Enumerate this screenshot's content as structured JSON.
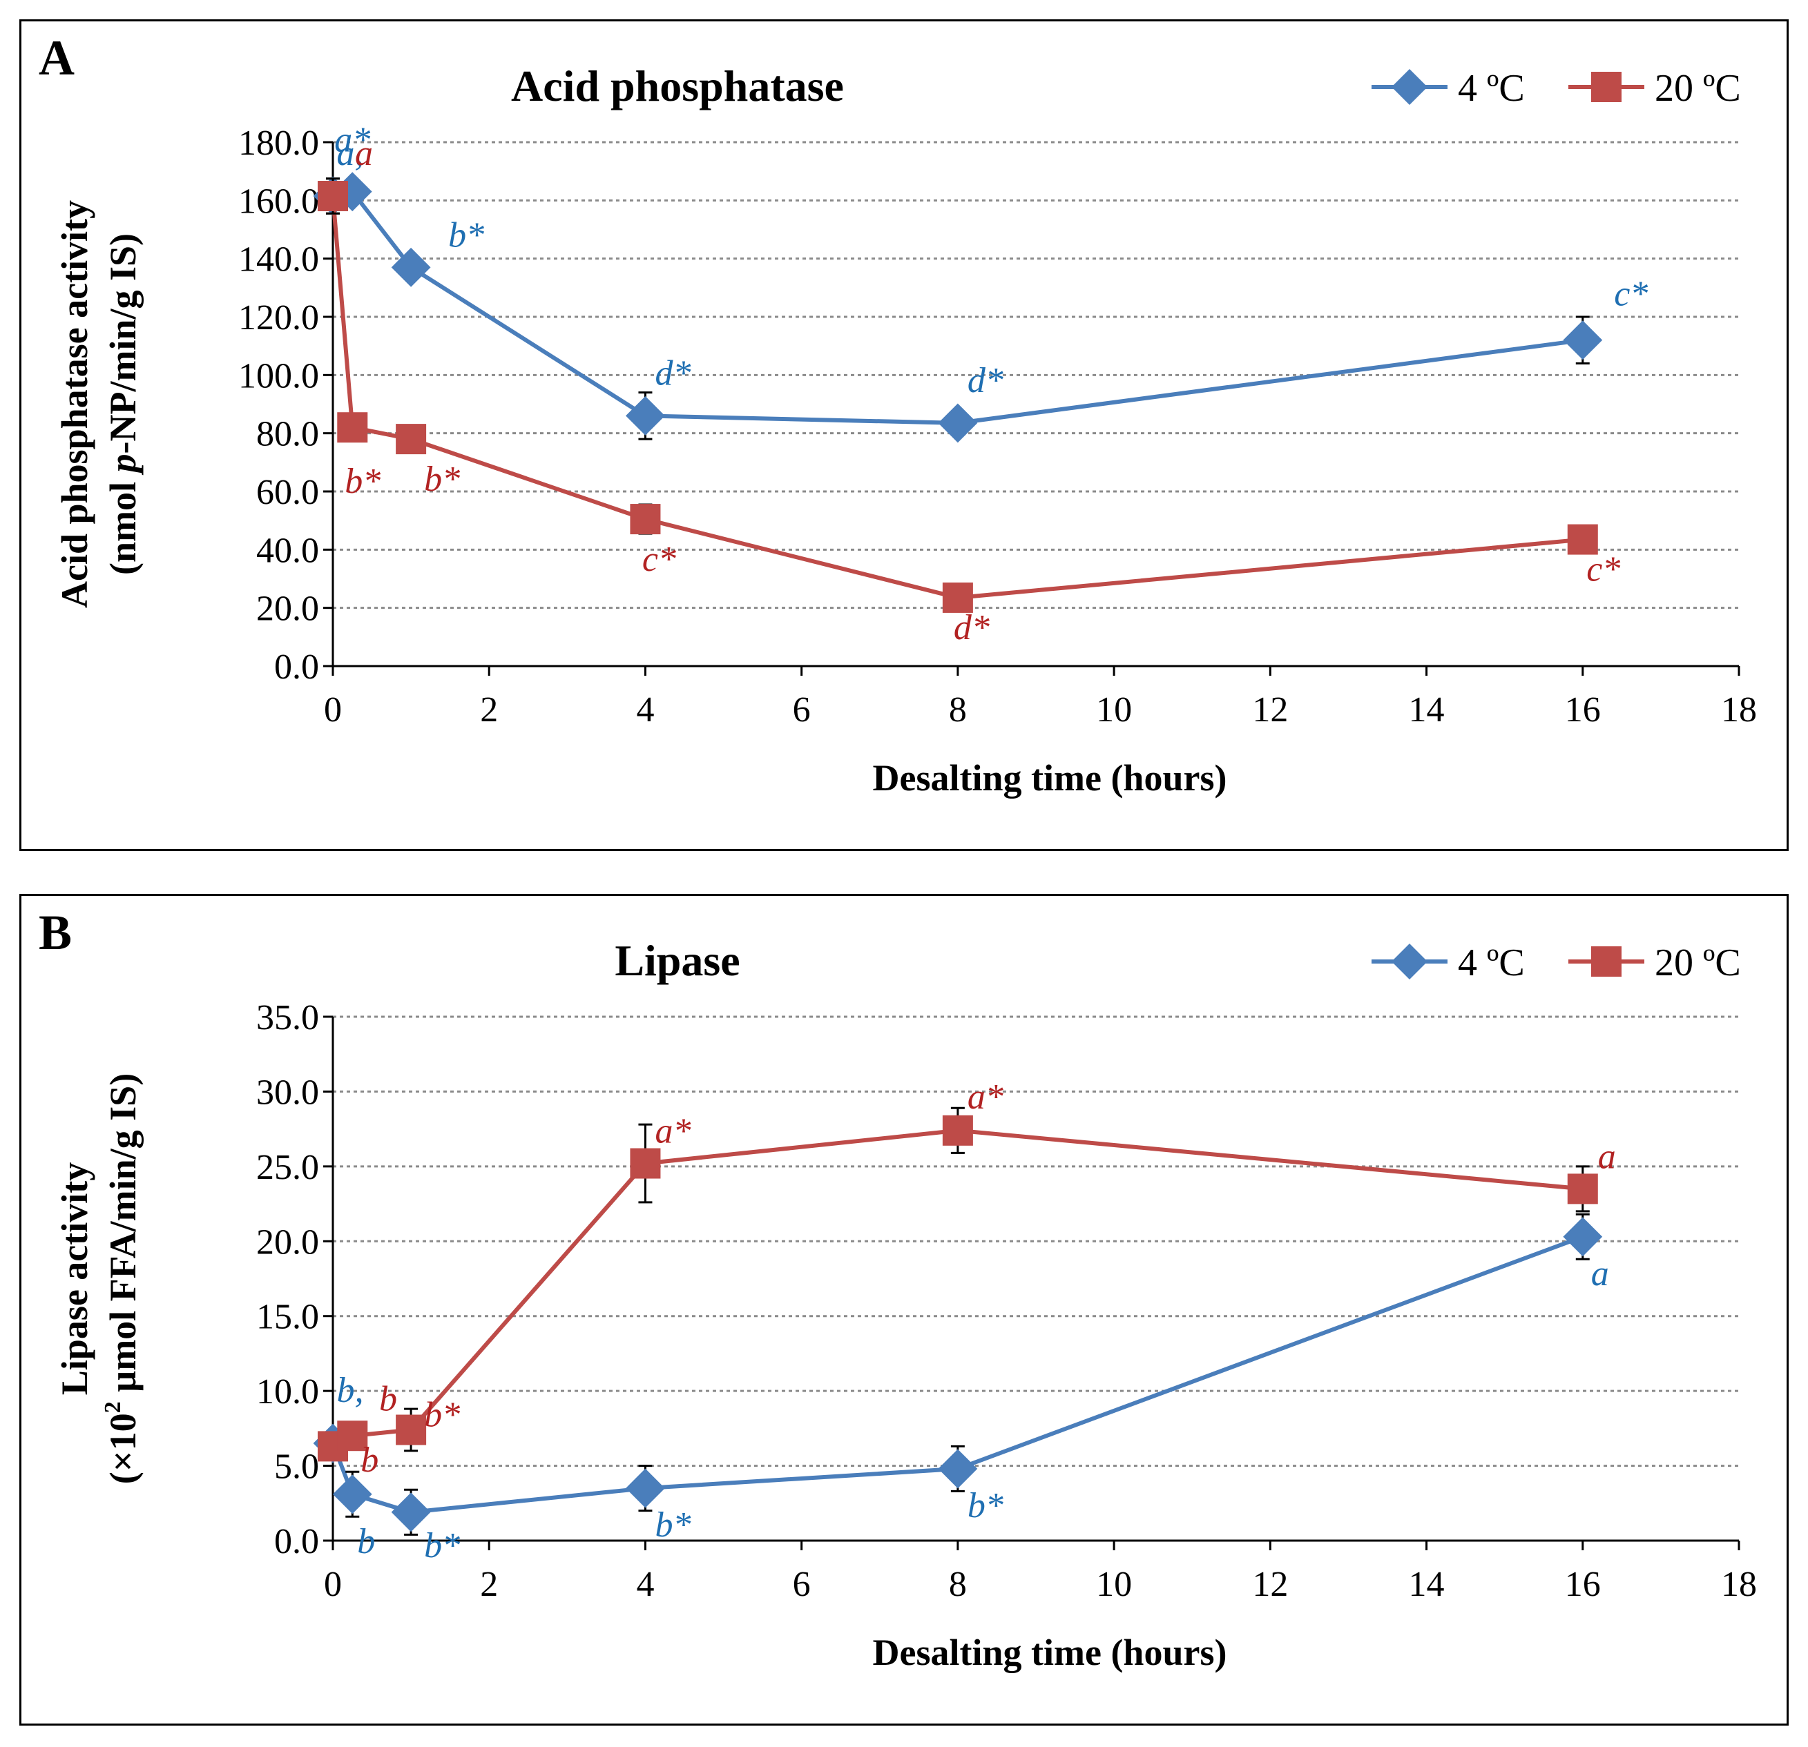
{
  "colors": {
    "blue": "#4A7EBB",
    "red": "#BE4B48",
    "blue_text": "#1F6FB2",
    "red_text": "#B22222"
  },
  "chart_data": [
    {
      "panel": "A",
      "type": "line",
      "title": "Acid phosphatase",
      "xlabel": "Desalting time (hours)",
      "ylabel_line1": "Acid phosphatase activity",
      "ylabel_line2_pre": "(nmol ",
      "ylabel_line2_italic": "p",
      "ylabel_line2_post": "-NP/min/g IS)",
      "xlim": [
        0,
        18
      ],
      "ylim": [
        0,
        180
      ],
      "xticks": [
        "0",
        "2",
        "4",
        "6",
        "8",
        "10",
        "12",
        "14",
        "16",
        "18"
      ],
      "yticks": [
        "0.0",
        "20.0",
        "40.0",
        "60.0",
        "80.0",
        "100.0",
        "120.0",
        "140.0",
        "160.0",
        "180.0"
      ],
      "grid": true,
      "legend": "top-right",
      "series": [
        {
          "name": "4 ºC",
          "color": "blue",
          "marker": "diamond",
          "x": [
            0,
            0.25,
            1,
            4,
            8,
            16
          ],
          "y": [
            161.5,
            163,
            137,
            86,
            83.5,
            112
          ],
          "err": [
            6,
            0,
            0,
            8,
            3,
            8
          ],
          "labels": [
            "a,",
            "a*",
            "b*",
            "d*",
            "d*",
            "c*"
          ]
        },
        {
          "name": "20 ºC",
          "color": "red",
          "marker": "square",
          "x": [
            0,
            0.25,
            1,
            4,
            8,
            16
          ],
          "y": [
            161.5,
            82,
            78,
            50.5,
            23.5,
            43.5
          ],
          "err": [
            6,
            0,
            0,
            5,
            0,
            0
          ],
          "labels": [
            "a",
            "b*",
            "b*",
            "c*",
            "d*",
            "c*"
          ]
        }
      ]
    },
    {
      "panel": "B",
      "type": "line",
      "title": "Lipase",
      "xlabel": "Desalting time (hours)",
      "ylabel_line1": "Lipase activity",
      "ylabel_line2_pre": "(×10",
      "ylabel_line2_sup": "2",
      "ylabel_line2_post": " µmol FFA/min/g IS)",
      "xlim": [
        0,
        18
      ],
      "ylim": [
        0,
        35
      ],
      "xticks": [
        "0",
        "2",
        "4",
        "6",
        "8",
        "10",
        "12",
        "14",
        "16",
        "18"
      ],
      "yticks": [
        "0.0",
        "5.0",
        "10.0",
        "15.0",
        "20.0",
        "25.0",
        "30.0",
        "35.0"
      ],
      "grid": true,
      "legend": "top-right",
      "series": [
        {
          "name": "4 ºC",
          "color": "blue",
          "marker": "diamond",
          "x": [
            0,
            0.25,
            1,
            4,
            8,
            16
          ],
          "y": [
            6.5,
            3.1,
            1.9,
            3.5,
            4.8,
            20.3
          ],
          "err": [
            0,
            1.5,
            1.5,
            1.5,
            1.5,
            1.5
          ],
          "labels": [
            "b,",
            "b",
            "b*",
            "b*",
            "b*",
            "a"
          ]
        },
        {
          "name": "20 ºC",
          "color": "red",
          "marker": "square",
          "x": [
            0,
            0.25,
            1,
            4,
            8,
            16
          ],
          "y": [
            6.3,
            7.0,
            7.4,
            25.2,
            27.4,
            23.5
          ],
          "err": [
            0.5,
            0,
            1.4,
            2.6,
            1.5,
            1.5
          ],
          "labels": [
            "b",
            "b",
            "b*",
            "a*",
            "a*",
            "a"
          ]
        }
      ]
    }
  ]
}
